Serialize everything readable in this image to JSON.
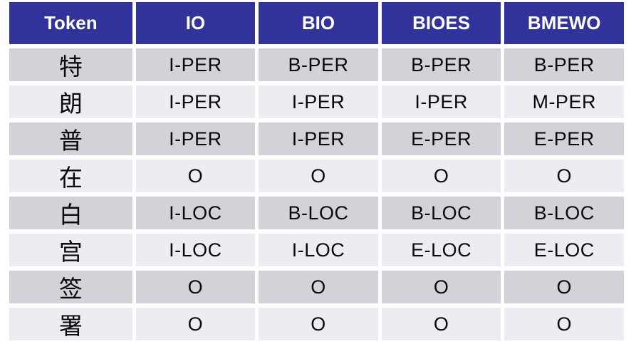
{
  "colors": {
    "header_bg": "#32329B",
    "header_text": "#FFFFFF",
    "row_alt_bg": "#D2D2D8",
    "row_bg": "#ECEDF3",
    "cell_text": "#0A0A0A",
    "page_bg": "#FFFFFF"
  },
  "table": {
    "columns": [
      "Token",
      "IO",
      "BIO",
      "BIOES",
      "BMEWO"
    ],
    "rows": [
      {
        "token": "特",
        "tags": [
          "I-PER",
          "B-PER",
          "B-PER",
          "B-PER"
        ]
      },
      {
        "token": "朗",
        "tags": [
          "I-PER",
          "I-PER",
          "I-PER",
          "M-PER"
        ]
      },
      {
        "token": "普",
        "tags": [
          "I-PER",
          "I-PER",
          "E-PER",
          "E-PER"
        ]
      },
      {
        "token": "在",
        "tags": [
          "O",
          "O",
          "O",
          "O"
        ]
      },
      {
        "token": "白",
        "tags": [
          "I-LOC",
          "B-LOC",
          "B-LOC",
          "B-LOC"
        ]
      },
      {
        "token": "宫",
        "tags": [
          "I-LOC",
          "I-LOC",
          "E-LOC",
          "E-LOC"
        ]
      },
      {
        "token": "签",
        "tags": [
          "O",
          "O",
          "O",
          "O"
        ]
      },
      {
        "token": "署",
        "tags": [
          "O",
          "O",
          "O",
          "O"
        ]
      }
    ]
  }
}
